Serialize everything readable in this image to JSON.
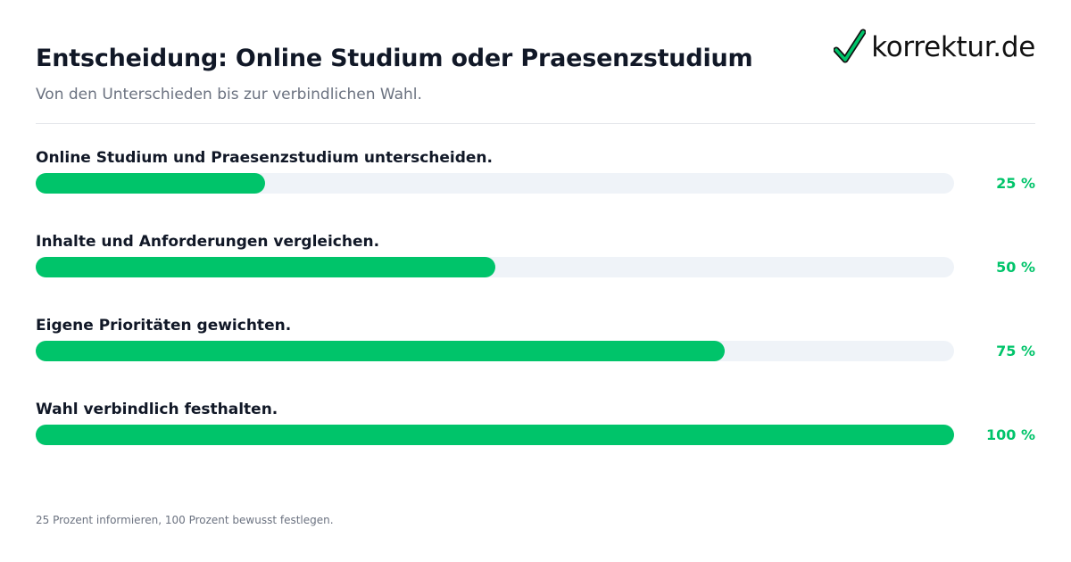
{
  "header": {
    "title": "Entscheidung: Online Studium oder Praesenzstudium",
    "subtitle": "Von den Unterschieden bis zur verbindlichen Wahl."
  },
  "logo": {
    "text": "korrektur.de",
    "icon": "checkmark-icon",
    "icon_color": "#00c46a"
  },
  "colors": {
    "accent": "#00c46a",
    "track": "#eff3f8",
    "title": "#111827",
    "muted": "#6b7280"
  },
  "chart_data": {
    "type": "bar",
    "orientation": "horizontal",
    "categories": [
      "Online Studium und Praesenzstudium unterscheiden.",
      "Inhalte und Anforderungen vergleichen.",
      "Eigene Prioritäten gewichten.",
      "Wahl verbindlich festhalten."
    ],
    "values": [
      25,
      50,
      75,
      100
    ],
    "value_labels": [
      "25 %",
      "50 %",
      "75 %",
      "100 %"
    ],
    "xlim": [
      0,
      100
    ],
    "grid": false
  },
  "footer": {
    "note": "25 Prozent informieren, 100 Prozent bewusst festlegen."
  }
}
